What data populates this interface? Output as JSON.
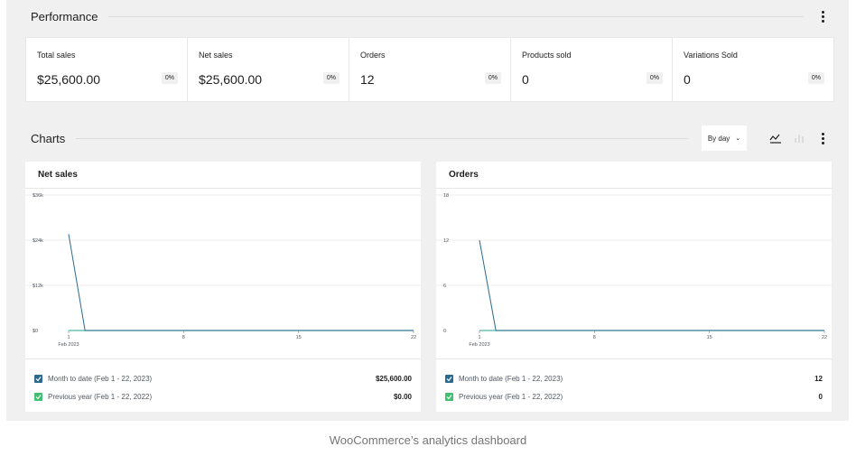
{
  "performance": {
    "title": "Performance",
    "tiles": [
      {
        "label": "Total sales",
        "value": "$25,600.00",
        "delta": "0%"
      },
      {
        "label": "Net sales",
        "value": "$25,600.00",
        "delta": "0%"
      },
      {
        "label": "Orders",
        "value": "12",
        "delta": "0%"
      },
      {
        "label": "Products sold",
        "value": "0",
        "delta": "0%"
      },
      {
        "label": "Variations Sold",
        "value": "0",
        "delta": "0%"
      }
    ]
  },
  "charts": {
    "title": "Charts",
    "interval": "By day",
    "icons": [
      "line-chart-icon",
      "bar-chart-icon",
      "more-icon"
    ]
  },
  "colors": {
    "accent": "#2b6a8f",
    "checkbox_blue": "#2b6a8f",
    "checkbox_green": "#3fbf6f",
    "baseline": "#4ab8a8",
    "grid": "#ececec"
  },
  "net_sales": {
    "title": "Net sales",
    "y_ticks": [
      "$36k",
      "$24k",
      "$12k",
      "$0"
    ],
    "x_ticks": [
      "1",
      "8",
      "15",
      "22"
    ],
    "x_sub": "Feb 2023",
    "legend": [
      {
        "label": "Month to date (Feb 1 - 22, 2023)",
        "value": "$25,600.00",
        "color": "blue"
      },
      {
        "label": "Previous year (Feb 1 - 22, 2022)",
        "value": "$0.00",
        "color": "green"
      }
    ]
  },
  "orders": {
    "title": "Orders",
    "y_ticks": [
      "18",
      "12",
      "6",
      "0"
    ],
    "x_ticks": [
      "1",
      "8",
      "15",
      "22"
    ],
    "x_sub": "Feb 2023",
    "legend": [
      {
        "label": "Month to date (Feb 1 - 22, 2023)",
        "value": "12",
        "color": "blue"
      },
      {
        "label": "Previous year (Feb 1 - 22, 2022)",
        "value": "0",
        "color": "green"
      }
    ]
  },
  "chart_data": [
    {
      "type": "line",
      "title": "Net sales",
      "x": [
        1,
        2,
        3,
        4,
        5,
        6,
        7,
        8,
        9,
        10,
        11,
        12,
        13,
        14,
        15,
        16,
        17,
        18,
        19,
        20,
        21,
        22
      ],
      "ylim": [
        0,
        36000
      ],
      "series": [
        {
          "name": "Month to date (Feb 1 - 22, 2023)",
          "values": [
            25600,
            0,
            0,
            0,
            0,
            0,
            0,
            0,
            0,
            0,
            0,
            0,
            0,
            0,
            0,
            0,
            0,
            0,
            0,
            0,
            0,
            0
          ]
        },
        {
          "name": "Previous year (Feb 1 - 22, 2022)",
          "values": [
            0,
            0,
            0,
            0,
            0,
            0,
            0,
            0,
            0,
            0,
            0,
            0,
            0,
            0,
            0,
            0,
            0,
            0,
            0,
            0,
            0,
            0
          ]
        }
      ]
    },
    {
      "type": "line",
      "title": "Orders",
      "x": [
        1,
        2,
        3,
        4,
        5,
        6,
        7,
        8,
        9,
        10,
        11,
        12,
        13,
        14,
        15,
        16,
        17,
        18,
        19,
        20,
        21,
        22
      ],
      "ylim": [
        0,
        18
      ],
      "series": [
        {
          "name": "Month to date (Feb 1 - 22, 2023)",
          "values": [
            12,
            0,
            0,
            0,
            0,
            0,
            0,
            0,
            0,
            0,
            0,
            0,
            0,
            0,
            0,
            0,
            0,
            0,
            0,
            0,
            0,
            0
          ]
        },
        {
          "name": "Previous year (Feb 1 - 22, 2022)",
          "values": [
            0,
            0,
            0,
            0,
            0,
            0,
            0,
            0,
            0,
            0,
            0,
            0,
            0,
            0,
            0,
            0,
            0,
            0,
            0,
            0,
            0,
            0
          ]
        }
      ]
    }
  ],
  "caption": "WooCommerce’s analytics dashboard"
}
